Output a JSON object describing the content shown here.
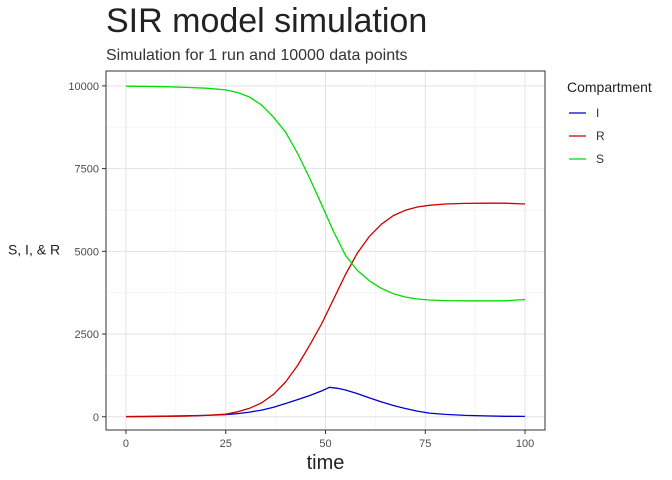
{
  "chart_data": {
    "type": "line",
    "title": "SIR model simulation",
    "subtitle": "Simulation for 1 run and 10000 data points",
    "xlabel": "time",
    "ylabel": "S, I, & R",
    "xlim": [
      -5,
      105
    ],
    "ylim": [
      -400,
      10450
    ],
    "x_ticks": [
      0,
      25,
      50,
      75,
      100
    ],
    "y_ticks": [
      0,
      2500,
      5000,
      7500,
      10000
    ],
    "grid": true,
    "legend": {
      "title": "Compartment",
      "position": "right"
    },
    "series": [
      {
        "name": "I",
        "color": "#0000cc",
        "x": [
          0,
          5,
          10,
          15,
          20,
          25,
          28,
          31,
          34,
          37,
          40,
          43,
          46,
          49,
          51,
          53,
          55,
          58,
          61,
          64,
          67,
          70,
          73,
          76,
          80,
          85,
          90,
          95,
          100
        ],
        "y": [
          8,
          12,
          20,
          28,
          40,
          65,
          95,
          140,
          200,
          290,
          400,
          520,
          640,
          780,
          890,
          860,
          810,
          700,
          570,
          450,
          340,
          250,
          170,
          110,
          70,
          40,
          25,
          15,
          10
        ]
      },
      {
        "name": "R",
        "color": "#cc0000",
        "x": [
          0,
          5,
          10,
          15,
          20,
          25,
          28,
          31,
          34,
          37,
          40,
          43,
          46,
          49,
          52,
          55,
          58,
          61,
          64,
          67,
          70,
          73,
          76,
          80,
          85,
          90,
          95,
          100
        ],
        "y": [
          2,
          5,
          10,
          20,
          40,
          80,
          150,
          260,
          420,
          680,
          1050,
          1550,
          2150,
          2800,
          3550,
          4300,
          4950,
          5450,
          5820,
          6080,
          6240,
          6340,
          6390,
          6430,
          6450,
          6455,
          6455,
          6430
        ]
      },
      {
        "name": "S",
        "color": "#00dd00",
        "x": [
          0,
          5,
          10,
          15,
          20,
          25,
          28,
          31,
          34,
          37,
          40,
          43,
          46,
          49,
          52,
          55,
          58,
          61,
          64,
          67,
          70,
          73,
          76,
          80,
          85,
          90,
          95,
          100
        ],
        "y": [
          9990,
          9985,
          9975,
          9955,
          9930,
          9880,
          9800,
          9660,
          9420,
          9050,
          8600,
          7960,
          7220,
          6420,
          5600,
          4880,
          4420,
          4110,
          3880,
          3720,
          3620,
          3560,
          3530,
          3510,
          3505,
          3505,
          3505,
          3545
        ]
      }
    ]
  }
}
